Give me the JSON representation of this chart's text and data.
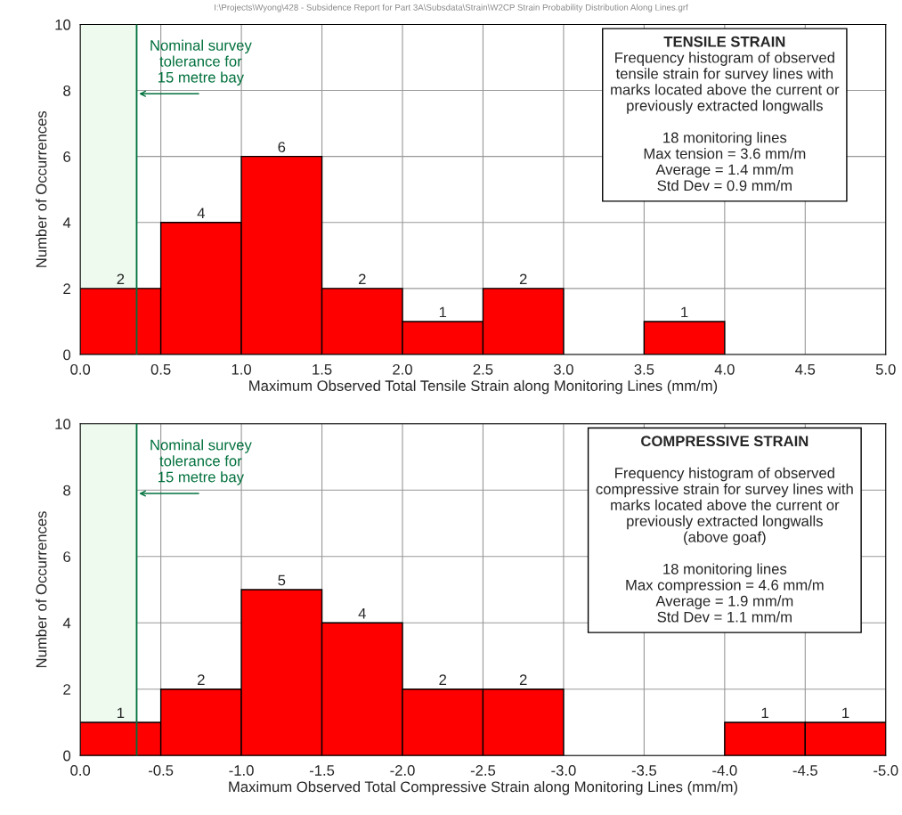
{
  "chart_data": [
    {
      "type": "histogram",
      "title": "TENSILE STRAIN",
      "xlabel": "Maximum Observed Total Tensile Strain along Monitoring Lines (mm/m)",
      "ylabel": "Number of Occurrences",
      "bins": [
        0,
        0.5,
        1,
        1.5,
        2,
        2.5,
        3,
        3.5,
        4,
        4.5,
        5
      ],
      "values": [
        2,
        4,
        6,
        2,
        1,
        2,
        0,
        1,
        0,
        0
      ],
      "color": "#ff0000",
      "value_labels": [
        "2",
        "4",
        "6",
        "2",
        "1",
        "2",
        null,
        "1",
        null,
        null
      ],
      "xlim": [
        0,
        5
      ],
      "xticks": [
        {
          "value": 0,
          "label": "0.0"
        },
        0.5,
        {
          "value": 1,
          "label": "1.0"
        },
        1.5,
        {
          "value": 2,
          "label": "2.0"
        },
        2.5,
        {
          "value": 3,
          "label": "3.0"
        },
        3.5,
        {
          "value": 4,
          "label": "4.0"
        },
        4.5,
        {
          "value": 5,
          "label": "5.0"
        }
      ],
      "ylim": [
        0,
        10
      ],
      "yticks": [
        0,
        2,
        4,
        6,
        8,
        10
      ],
      "grid": true,
      "bands": [
        {
          "axis": "x",
          "from": 0,
          "to": 0.35,
          "color": "#eefaee"
        }
      ],
      "ref_lines": [
        {
          "axis": "x",
          "value": 0.35,
          "color": "#00703c"
        }
      ],
      "annotations": [
        "I:\\Projects\\Wyong\\428 - Subsidence Report for Part 3A\\Subsdata\\Strain\\W2CP Strain Probability Distribution Along Lines.grf",
        {
          "text": "Nominal survey\ntolerance for\n15 metre bay",
          "x": 0.35,
          "y": 7.9
        },
        "Frequency histogram of observed\ntensile strain for survey lines with\nmarks located above the current or\npreviously extracted longwalls\n\n18 monitoring lines\nMax tension = 3.6 mm/m\nAverage = 1.4 mm/m\nStd Dev = 0.9 mm/m"
      ]
    },
    {
      "type": "histogram",
      "title": "COMPRESSIVE STRAIN",
      "xlabel": "Maximum Observed Total Compressive Strain along Monitoring Lines (mm/m)",
      "ylabel": "Number of Occurrences",
      "bins": [
        0,
        -0.5,
        -1,
        -1.5,
        -2,
        -2.5,
        -3,
        -3.5,
        -4,
        -4.5,
        -5
      ],
      "values": [
        1,
        2,
        5,
        4,
        2,
        2,
        0,
        0,
        1,
        1
      ],
      "color": "#ff0000",
      "value_labels": [
        "1",
        "2",
        "5",
        "4",
        "2",
        "2",
        null,
        null,
        "1",
        "1"
      ],
      "xlim": [
        0,
        -5
      ],
      "xticks": [
        {
          "value": 0,
          "label": "0.0"
        },
        {
          "value": -0.5,
          "label": "-0.5"
        },
        {
          "value": -1,
          "label": "-1.0"
        },
        {
          "value": -1.5,
          "label": "-1.5"
        },
        {
          "value": -2,
          "label": "-2.0"
        },
        {
          "value": -2.5,
          "label": "-2.5"
        },
        {
          "value": -3,
          "label": "-3.0"
        },
        {
          "value": -3.5,
          "label": "-3.5"
        },
        {
          "value": -4,
          "label": "-4.0"
        },
        {
          "value": -4.5,
          "label": "-4.5"
        },
        {
          "value": -5,
          "label": "-5.0"
        }
      ],
      "ylim": [
        0,
        10
      ],
      "yticks": [
        0,
        2,
        4,
        6,
        8,
        10
      ],
      "grid": true,
      "bands": [
        {
          "axis": "x",
          "from": 0,
          "to": -0.35,
          "color": "#eefaee"
        }
      ],
      "ref_lines": [
        {
          "axis": "x",
          "value": -0.35,
          "color": "#00703c"
        }
      ],
      "annotations": [
        {
          "text": "Nominal survey\ntolerance for\n15 metre bay",
          "x": -0.35,
          "y": 7.9
        },
        "\nFrequency histogram of observed\ncompressive strain for survey lines with\nmarks located above the current or\npreviously extracted longwalls\n(above goaf)\n\n18 monitoring lines\nMax compression = 4.6 mm/m\nAverage = 1.9 mm/m\nStd Dev = 1.1 mm/m"
      ]
    }
  ]
}
